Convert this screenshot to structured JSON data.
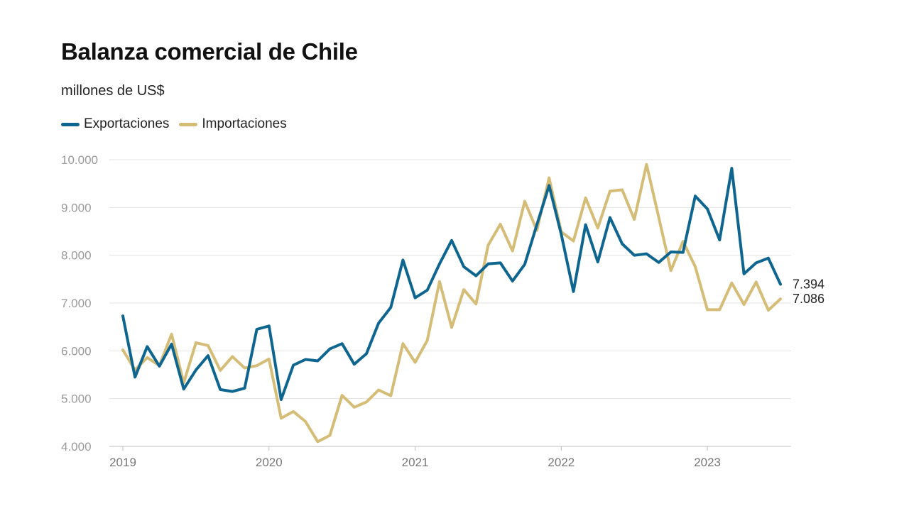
{
  "chart_data": {
    "type": "line",
    "title": "Balanza comercial de Chile",
    "subtitle": "millones de US$",
    "ylim": [
      4000,
      10000
    ],
    "yticks": [
      4000,
      5000,
      6000,
      7000,
      8000,
      9000,
      10000
    ],
    "ytick_labels": [
      "4.000",
      "5.000",
      "6.000",
      "7.000",
      "8.000",
      "9.000",
      "10.000"
    ],
    "x_start": "2019-01",
    "x_end": "2023-07",
    "xticks": [
      "2019-01",
      "2020-01",
      "2021-01",
      "2022-01",
      "2023-01"
    ],
    "xtick_labels": [
      "2019",
      "2020",
      "2021",
      "2022",
      "2023"
    ],
    "grid": true,
    "legend_position": "top-left",
    "series": [
      {
        "name": "Exportaciones",
        "color": "#0e6690",
        "end_label": "7.394",
        "x": [
          "2019-01",
          "2019-02",
          "2019-03",
          "2019-04",
          "2019-05",
          "2019-06",
          "2019-07",
          "2019-08",
          "2019-09",
          "2019-10",
          "2019-11",
          "2019-12",
          "2020-01",
          "2020-02",
          "2020-03",
          "2020-04",
          "2020-05",
          "2020-06",
          "2020-07",
          "2020-08",
          "2020-09",
          "2020-10",
          "2020-11",
          "2020-12",
          "2021-01",
          "2021-02",
          "2021-03",
          "2021-04",
          "2021-05",
          "2021-06",
          "2021-07",
          "2021-08",
          "2021-09",
          "2021-10",
          "2021-11",
          "2021-12",
          "2022-01",
          "2022-02",
          "2022-03",
          "2022-04",
          "2022-05",
          "2022-06",
          "2022-07",
          "2022-08",
          "2022-09",
          "2022-10",
          "2022-11",
          "2022-12",
          "2023-01",
          "2023-02",
          "2023-03",
          "2023-04",
          "2023-05",
          "2023-06",
          "2023-07"
        ],
        "values": [
          6730,
          5450,
          6090,
          5680,
          6140,
          5200,
          5600,
          5900,
          5190,
          5150,
          5220,
          6450,
          6520,
          4980,
          5700,
          5820,
          5790,
          6040,
          6150,
          5720,
          5940,
          6580,
          6910,
          7900,
          7110,
          7270,
          7820,
          8310,
          7760,
          7570,
          7820,
          7840,
          7460,
          7810,
          8640,
          9460,
          8440,
          7240,
          8640,
          7860,
          8790,
          8240,
          8000,
          8030,
          7850,
          8070,
          8060,
          9240,
          8970,
          8320,
          9820,
          7610,
          7840,
          7940,
          7394
        ]
      },
      {
        "name": "Importaciones",
        "color": "#d5bd77",
        "end_label": "7.086",
        "x": [
          "2019-01",
          "2019-02",
          "2019-03",
          "2019-04",
          "2019-05",
          "2019-06",
          "2019-07",
          "2019-08",
          "2019-09",
          "2019-10",
          "2019-11",
          "2019-12",
          "2020-01",
          "2020-02",
          "2020-03",
          "2020-04",
          "2020-05",
          "2020-06",
          "2020-07",
          "2020-08",
          "2020-09",
          "2020-10",
          "2020-11",
          "2020-12",
          "2021-01",
          "2021-02",
          "2021-03",
          "2021-04",
          "2021-05",
          "2021-06",
          "2021-07",
          "2021-08",
          "2021-09",
          "2021-10",
          "2021-11",
          "2021-12",
          "2022-01",
          "2022-02",
          "2022-03",
          "2022-04",
          "2022-05",
          "2022-06",
          "2022-07",
          "2022-08",
          "2022-09",
          "2022-10",
          "2022-11",
          "2022-12",
          "2023-01",
          "2023-02",
          "2023-03",
          "2023-04",
          "2023-05",
          "2023-06",
          "2023-07"
        ],
        "values": [
          6020,
          5600,
          5860,
          5690,
          6350,
          5330,
          6170,
          6110,
          5590,
          5880,
          5640,
          5690,
          5830,
          4590,
          4730,
          4520,
          4100,
          4230,
          5070,
          4820,
          4930,
          5180,
          5060,
          6150,
          5760,
          6220,
          7450,
          6490,
          7280,
          6980,
          8210,
          8650,
          8090,
          9130,
          8520,
          9620,
          8490,
          8300,
          9200,
          8570,
          9340,
          9370,
          8750,
          9900,
          8800,
          7680,
          8290,
          7760,
          6860,
          6860,
          7420,
          6970,
          7440,
          6850,
          7086
        ]
      }
    ]
  }
}
